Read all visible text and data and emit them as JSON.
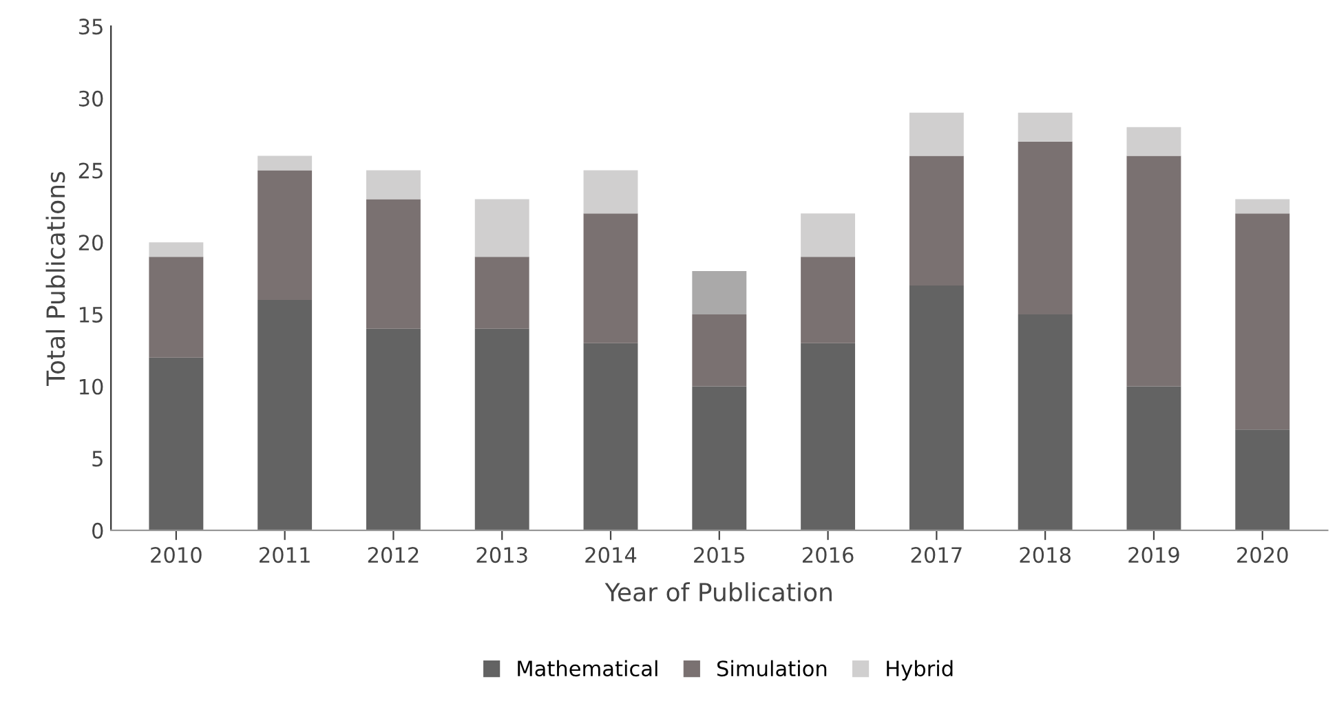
{
  "chart_data": {
    "type": "bar",
    "stacked": true,
    "xlabel": "Year of Publication",
    "ylabel": "Total Publications",
    "categories": [
      "2010",
      "2011",
      "2012",
      "2013",
      "2014",
      "2015",
      "2016",
      "2017",
      "2018",
      "2019",
      "2020"
    ],
    "series": [
      {
        "name": "Mathematical",
        "color": "#636363",
        "values": [
          12,
          16,
          14,
          14,
          13,
          10,
          13,
          17,
          15,
          10,
          7
        ]
      },
      {
        "name": "Simulation",
        "color": "#7a7171",
        "values": [
          7,
          9,
          9,
          5,
          9,
          5,
          6,
          9,
          12,
          16,
          15
        ]
      },
      {
        "name": "Hybrid",
        "color": "#d0cfcf",
        "colors": [
          "#d0cfcf",
          "#d0cfcf",
          "#d0cfcf",
          "#d0cfcf",
          "#d0cfcf",
          "#aaa9a9",
          "#d0cfcf",
          "#d0cfcf",
          "#d0cfcf",
          "#d0cfcf",
          "#d0cfcf"
        ],
        "values": [
          1,
          1,
          2,
          4,
          3,
          3,
          3,
          3,
          2,
          2,
          1
        ]
      }
    ],
    "ylim": [
      0,
      35
    ],
    "yticks": [
      0,
      5,
      10,
      15,
      20,
      25,
      30,
      35
    ],
    "grid": false,
    "legend": "bottom"
  }
}
